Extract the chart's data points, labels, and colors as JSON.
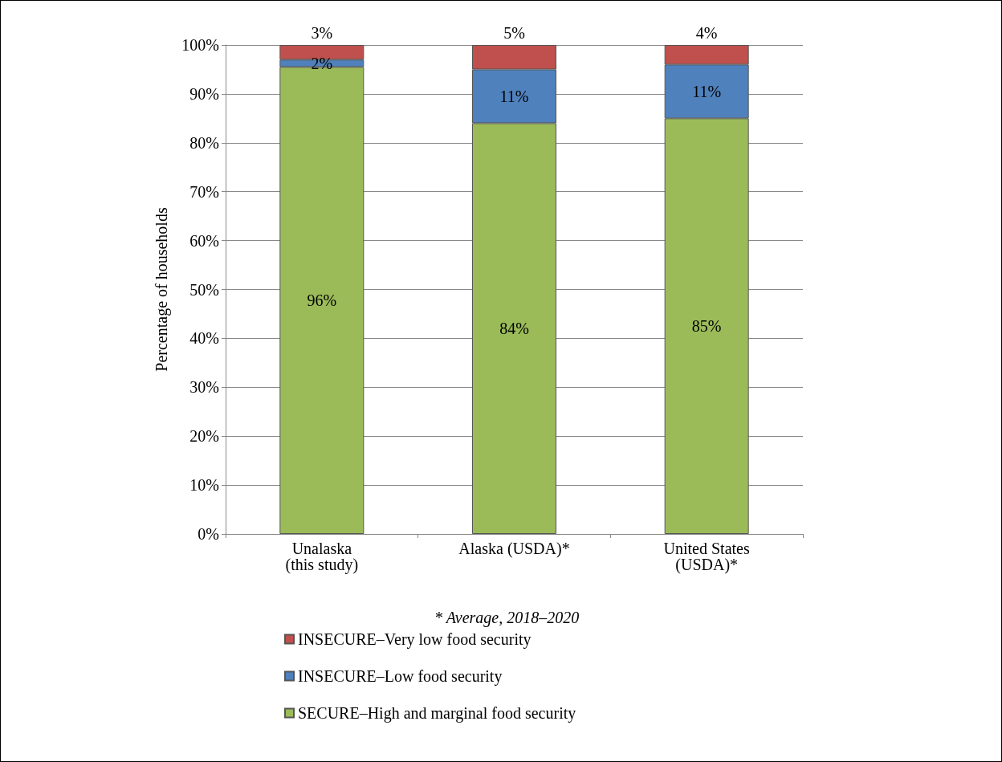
{
  "chart_data": {
    "type": "bar",
    "stacked": true,
    "ylabel": "Percentage of households",
    "categories": [
      "Unalaska\n(this study)",
      "Alaska (USDA)*",
      "United States\n(USDA)*"
    ],
    "series": [
      {
        "name": "SECURE–High and marginal food security",
        "color": "#9bbb59",
        "values": [
          95.5,
          84,
          85
        ],
        "value_labels": [
          "96%",
          "84%",
          "85%"
        ]
      },
      {
        "name": "INSECURE–Low food security",
        "color": "#4f81bd",
        "values": [
          1.5,
          11,
          11
        ],
        "value_labels": [
          "2%",
          "11%",
          "11%"
        ]
      },
      {
        "name": "INSECURE–Very low food security",
        "color": "#c0504d",
        "values": [
          3,
          5,
          4
        ],
        "value_labels": [
          "3%",
          "5%",
          "4%"
        ]
      }
    ],
    "ylim": [
      0,
      100
    ],
    "yticks": [
      {
        "value": 0,
        "label": "0%"
      },
      {
        "value": 10,
        "label": "10%"
      },
      {
        "value": 20,
        "label": "20%"
      },
      {
        "value": 30,
        "label": "30%"
      },
      {
        "value": 40,
        "label": "40%"
      },
      {
        "value": 50,
        "label": "50%"
      },
      {
        "value": 60,
        "label": "60%"
      },
      {
        "value": 70,
        "label": "70%"
      },
      {
        "value": 80,
        "label": "80%"
      },
      {
        "value": 90,
        "label": "90%"
      },
      {
        "value": 100,
        "label": "100%"
      }
    ],
    "grid": "y",
    "legend": "bottom",
    "annotations": [
      "* Average, 2018–2020"
    ]
  }
}
